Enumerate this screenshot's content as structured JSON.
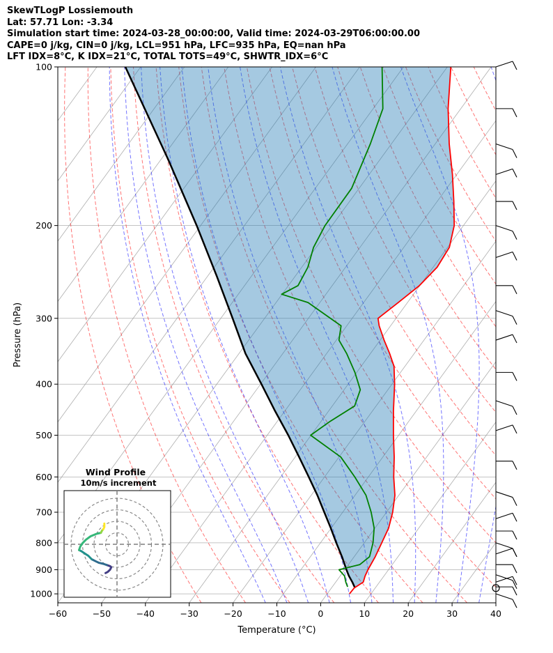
{
  "header": {
    "line1": "SkewTLogP Lossiemouth",
    "line2": "Lat: 57.71   Lon: -3.34",
    "line3": "Simulation start time: 2024-03-28_00:00:00, Valid time: 2024-03-29T06:00:00.00",
    "line4": "CAPE=0 j/kg, CIN=0 j/kg, LCL=951 hPa, LFC=935 hPa, EQ=nan hPa",
    "line5": "LFT IDX=8°C, K IDX=21°C, TOTAL TOTS=49°C, SHWTR_IDX=6°C"
  },
  "chart_data": {
    "type": "line",
    "subtype": "skew-t log-p",
    "xlabel": "Temperature (°C)",
    "ylabel": "Pressure (hPa)",
    "xlim": [
      -60,
      40
    ],
    "plim": [
      1040,
      100
    ],
    "yscale": "log",
    "grid": true,
    "x_ticks": [
      -60,
      -50,
      -40,
      -30,
      -20,
      -10,
      0,
      10,
      20,
      30,
      40
    ],
    "p_ticks": [
      100,
      200,
      300,
      400,
      500,
      600,
      700,
      800,
      900,
      1000
    ],
    "colors": {
      "temperature": "#ff0000",
      "dewpoint": "#008000",
      "parcel": "#000000",
      "cape_fill": "#1f77b4",
      "dry_adiabats": "#ff0000",
      "moist_adiabats": "#0000ff",
      "isotherms": "#999999"
    },
    "series": [
      {
        "role": "temperature",
        "points": [
          [
            1000,
            5.1
          ],
          [
            975,
            5.2
          ],
          [
            950,
            6.3
          ],
          [
            925,
            5.7
          ],
          [
            900,
            5.3
          ],
          [
            850,
            4.8
          ],
          [
            800,
            4.0
          ],
          [
            750,
            3.1
          ],
          [
            700,
            1.4
          ],
          [
            650,
            -0.9
          ],
          [
            600,
            -4.2
          ],
          [
            550,
            -7.4
          ],
          [
            500,
            -11.2
          ],
          [
            450,
            -15.2
          ],
          [
            400,
            -19.4
          ],
          [
            370,
            -22.5
          ],
          [
            350,
            -25.6
          ],
          [
            330,
            -29.1
          ],
          [
            310,
            -32.6
          ],
          [
            300,
            -34.1
          ],
          [
            280,
            -32.1
          ],
          [
            260,
            -30.1
          ],
          [
            240,
            -29.1
          ],
          [
            220,
            -29.6
          ],
          [
            200,
            -32.1
          ],
          [
            180,
            -36.2
          ],
          [
            160,
            -41.0
          ],
          [
            140,
            -46.8
          ],
          [
            120,
            -52.9
          ],
          [
            100,
            -59.2
          ]
        ]
      },
      {
        "role": "dewpoint",
        "points": [
          [
            970,
            3.5
          ],
          [
            950,
            2.3
          ],
          [
            925,
            1.0
          ],
          [
            900,
            -1.3
          ],
          [
            880,
            2.6
          ],
          [
            850,
            3.5
          ],
          [
            800,
            2.0
          ],
          [
            750,
            -0.2
          ],
          [
            700,
            -3.5
          ],
          [
            650,
            -7.5
          ],
          [
            600,
            -13.1
          ],
          [
            550,
            -19.6
          ],
          [
            500,
            -30.1
          ],
          [
            470,
            -27.9
          ],
          [
            440,
            -24.9
          ],
          [
            410,
            -26.3
          ],
          [
            380,
            -30.4
          ],
          [
            350,
            -35.4
          ],
          [
            330,
            -39.4
          ],
          [
            310,
            -41.3
          ],
          [
            280,
            -52.7
          ],
          [
            270,
            -60.1
          ],
          [
            260,
            -57.8
          ],
          [
            240,
            -58.6
          ],
          [
            220,
            -60.6
          ],
          [
            200,
            -61.6
          ],
          [
            170,
            -61.7
          ],
          [
            140,
            -64.8
          ],
          [
            120,
            -67.8
          ],
          [
            100,
            -74.9
          ]
        ]
      },
      {
        "role": "parcel",
        "points": [
          [
            975,
            5.4
          ],
          [
            950,
            3.8
          ],
          [
            925,
            2.0
          ],
          [
            900,
            0.4
          ],
          [
            850,
            -2.8
          ],
          [
            800,
            -6.4
          ],
          [
            750,
            -10.1
          ],
          [
            700,
            -14.2
          ],
          [
            650,
            -18.6
          ],
          [
            600,
            -23.6
          ],
          [
            550,
            -29.1
          ],
          [
            500,
            -35.2
          ],
          [
            450,
            -42.2
          ],
          [
            400,
            -49.8
          ],
          [
            350,
            -58.5
          ],
          [
            300,
            -67.3
          ],
          [
            250,
            -77.8
          ],
          [
            200,
            -90.9
          ],
          [
            150,
            -108.3
          ],
          [
            100,
            -133.5
          ]
        ]
      }
    ],
    "wind_barbs": {
      "pressures_hPa": [
        100,
        120,
        140,
        160,
        180,
        200,
        230,
        260,
        290,
        330,
        380,
        430,
        490,
        560,
        640,
        720,
        760,
        800,
        840,
        880,
        920,
        950,
        970,
        1000
      ]
    },
    "inset": {
      "type": "hodograph",
      "title": "Wind Profile",
      "subtitle": "10m/s increment",
      "units": "m/s",
      "ring_increment": 10,
      "segments": [
        {
          "color": "#433e85",
          "points": [
            [
              -10,
              -25
            ],
            [
              -8,
              -24
            ],
            [
              -6,
              -22
            ],
            [
              -5,
              -20
            ],
            [
              -6,
              -19
            ],
            [
              -9,
              -18
            ]
          ]
        },
        {
          "color": "#2f6c8e",
          "points": [
            [
              -9,
              -18
            ],
            [
              -12,
              -17
            ],
            [
              -16,
              -16
            ],
            [
              -18,
              -15
            ],
            [
              -22,
              -13
            ]
          ]
        },
        {
          "color": "#21918c",
          "points": [
            [
              -22,
              -13
            ],
            [
              -25,
              -10
            ],
            [
              -28,
              -8
            ],
            [
              -31,
              -6
            ],
            [
              -33,
              -5
            ]
          ]
        },
        {
          "color": "#35b779",
          "points": [
            [
              -33,
              -5
            ],
            [
              -32,
              -2
            ],
            [
              -30,
              1
            ],
            [
              -27,
              4
            ],
            [
              -23,
              7
            ],
            [
              -18,
              9
            ],
            [
              -14,
              10
            ]
          ]
        },
        {
          "color": "#90d743",
          "points": [
            [
              -14,
              10
            ],
            [
              -13,
              12
            ],
            [
              -12,
              13
            ]
          ]
        },
        {
          "color": "#fde725",
          "points": [
            [
              -12,
              13
            ],
            [
              -11,
              15
            ],
            [
              -11,
              18
            ]
          ]
        }
      ]
    }
  }
}
